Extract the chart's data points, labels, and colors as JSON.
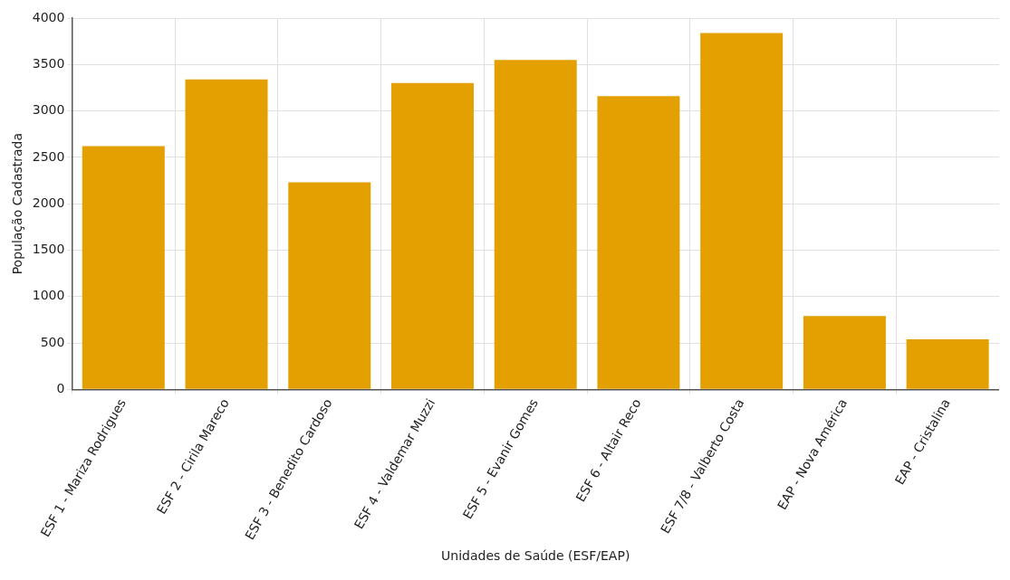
{
  "chart_data": {
    "type": "bar",
    "xlabel": "Unidades de Saúde (ESF/EAP)",
    "ylabel": "População Cadastrada",
    "categories": [
      "ESF 1 - Mariza Rodrigues",
      "ESF 2 - Cirila Mareco",
      "ESF 3 - Benedito Cardoso",
      "ESF 4 - Valdemar Muzzi",
      "ESF 5 - Evanir Gomes",
      "ESF 6 - Altair Reco",
      "ESF 7/8 - Valberto Costa",
      "EAP - Nova América",
      "EAP - Cristalina"
    ],
    "values": [
      2620,
      3340,
      2230,
      3300,
      3550,
      3160,
      3840,
      790,
      540
    ],
    "color": "#e3a000",
    "ylim": [
      0,
      4000
    ],
    "yticks": [
      0,
      500,
      1000,
      1500,
      2000,
      2500,
      3000,
      3500,
      4000
    ],
    "grid": true,
    "legend": false
  }
}
